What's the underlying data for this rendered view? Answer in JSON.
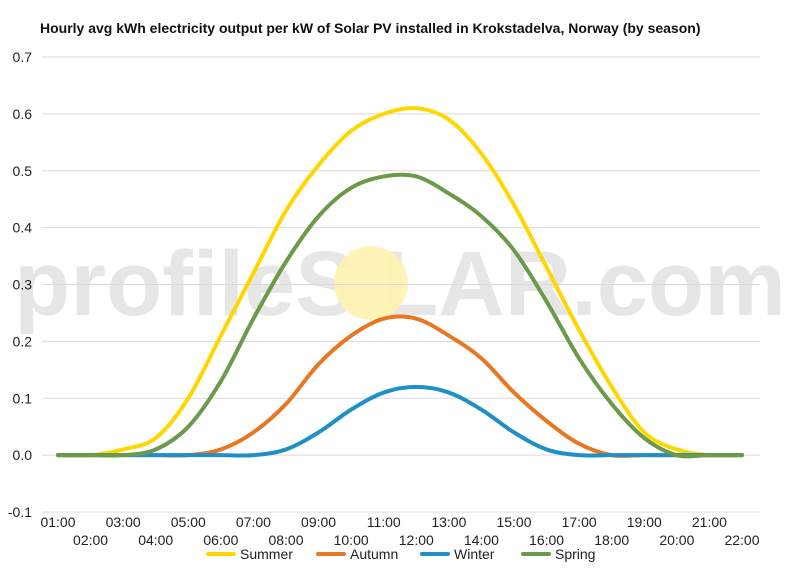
{
  "chart_data": {
    "type": "line",
    "title": "Hourly avg kWh electricity output per kW of Solar PV installed in Krokstadelva, Norway (by season)",
    "xlabel": "",
    "ylabel": "",
    "ylim": [
      -0.1,
      0.7
    ],
    "yticks": [
      "-0.1",
      "0.0",
      "0.1",
      "0.2",
      "0.3",
      "0.4",
      "0.5",
      "0.6",
      "0.7"
    ],
    "categories": [
      "01:00",
      "02:00",
      "03:00",
      "04:00",
      "05:00",
      "06:00",
      "07:00",
      "08:00",
      "09:00",
      "10:00",
      "11:00",
      "12:00",
      "13:00",
      "14:00",
      "15:00",
      "16:00",
      "17:00",
      "18:00",
      "19:00",
      "20:00",
      "21:00",
      "22:00"
    ],
    "grid": true,
    "legend_position": "bottom",
    "series": [
      {
        "name": "Summer",
        "color": "#FFD700",
        "values": [
          0.0,
          0.0,
          0.01,
          0.03,
          0.1,
          0.21,
          0.32,
          0.43,
          0.51,
          0.57,
          0.6,
          0.61,
          0.59,
          0.53,
          0.44,
          0.33,
          0.22,
          0.12,
          0.04,
          0.01,
          0.0,
          0.0
        ]
      },
      {
        "name": "Autumn",
        "color": "#E87722",
        "values": [
          0.0,
          0.0,
          0.0,
          0.0,
          0.0,
          0.01,
          0.04,
          0.09,
          0.16,
          0.21,
          0.24,
          0.24,
          0.21,
          0.17,
          0.11,
          0.06,
          0.02,
          0.0,
          0.0,
          0.0,
          0.0,
          0.0
        ]
      },
      {
        "name": "Winter",
        "color": "#1F8FC6",
        "values": [
          0.0,
          0.0,
          0.0,
          0.0,
          0.0,
          0.0,
          0.0,
          0.01,
          0.04,
          0.08,
          0.11,
          0.12,
          0.11,
          0.08,
          0.04,
          0.01,
          0.0,
          0.0,
          0.0,
          0.0,
          0.0,
          0.0
        ]
      },
      {
        "name": "Spring",
        "color": "#6A9A4A",
        "values": [
          0.0,
          0.0,
          0.0,
          0.01,
          0.05,
          0.13,
          0.24,
          0.34,
          0.42,
          0.47,
          0.49,
          0.49,
          0.46,
          0.42,
          0.36,
          0.27,
          0.17,
          0.09,
          0.03,
          0.0,
          0.0,
          0.0
        ]
      }
    ]
  },
  "watermark": {
    "text_before": "profileS",
    "text_after": "LAR.com",
    "sun_color": "#FFF3B0"
  }
}
